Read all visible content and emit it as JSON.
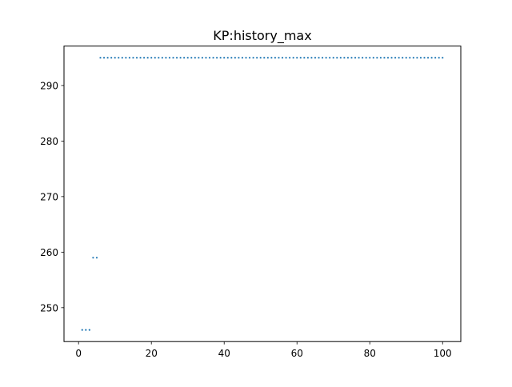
{
  "chart_data": {
    "type": "scatter",
    "title": "KP:history_max",
    "xlabel": "",
    "ylabel": "",
    "xlim": [
      -4,
      105
    ],
    "ylim": [
      243.9,
      297.1
    ],
    "x_ticks": [
      0,
      20,
      40,
      60,
      80,
      100
    ],
    "y_ticks": [
      250,
      260,
      270,
      280,
      290
    ],
    "x_tick_labels": [
      "0",
      "20",
      "40",
      "60",
      "80",
      "100"
    ],
    "y_tick_labels": [
      "250",
      "260",
      "270",
      "280",
      "290"
    ],
    "grid": false,
    "legend": "none",
    "series": [
      {
        "color": "#1f77b4",
        "points": [
          [
            1,
            246
          ],
          [
            2,
            246
          ],
          [
            3,
            246
          ],
          [
            4,
            259
          ],
          [
            5,
            259
          ],
          [
            6,
            295
          ],
          [
            7,
            295
          ],
          [
            8,
            295
          ],
          [
            9,
            295
          ],
          [
            10,
            295
          ],
          [
            11,
            295
          ],
          [
            12,
            295
          ],
          [
            13,
            295
          ],
          [
            14,
            295
          ],
          [
            15,
            295
          ],
          [
            16,
            295
          ],
          [
            17,
            295
          ],
          [
            18,
            295
          ],
          [
            19,
            295
          ],
          [
            20,
            295
          ],
          [
            21,
            295
          ],
          [
            22,
            295
          ],
          [
            23,
            295
          ],
          [
            24,
            295
          ],
          [
            25,
            295
          ],
          [
            26,
            295
          ],
          [
            27,
            295
          ],
          [
            28,
            295
          ],
          [
            29,
            295
          ],
          [
            30,
            295
          ],
          [
            31,
            295
          ],
          [
            32,
            295
          ],
          [
            33,
            295
          ],
          [
            34,
            295
          ],
          [
            35,
            295
          ],
          [
            36,
            295
          ],
          [
            37,
            295
          ],
          [
            38,
            295
          ],
          [
            39,
            295
          ],
          [
            40,
            295
          ],
          [
            41,
            295
          ],
          [
            42,
            295
          ],
          [
            43,
            295
          ],
          [
            44,
            295
          ],
          [
            45,
            295
          ],
          [
            46,
            295
          ],
          [
            47,
            295
          ],
          [
            48,
            295
          ],
          [
            49,
            295
          ],
          [
            50,
            295
          ],
          [
            51,
            295
          ],
          [
            52,
            295
          ],
          [
            53,
            295
          ],
          [
            54,
            295
          ],
          [
            55,
            295
          ],
          [
            56,
            295
          ],
          [
            57,
            295
          ],
          [
            58,
            295
          ],
          [
            59,
            295
          ],
          [
            60,
            295
          ],
          [
            61,
            295
          ],
          [
            62,
            295
          ],
          [
            63,
            295
          ],
          [
            64,
            295
          ],
          [
            65,
            295
          ],
          [
            66,
            295
          ],
          [
            67,
            295
          ],
          [
            68,
            295
          ],
          [
            69,
            295
          ],
          [
            70,
            295
          ],
          [
            71,
            295
          ],
          [
            72,
            295
          ],
          [
            73,
            295
          ],
          [
            74,
            295
          ],
          [
            75,
            295
          ],
          [
            76,
            295
          ],
          [
            77,
            295
          ],
          [
            78,
            295
          ],
          [
            79,
            295
          ],
          [
            80,
            295
          ],
          [
            81,
            295
          ],
          [
            82,
            295
          ],
          [
            83,
            295
          ],
          [
            84,
            295
          ],
          [
            85,
            295
          ],
          [
            86,
            295
          ],
          [
            87,
            295
          ],
          [
            88,
            295
          ],
          [
            89,
            295
          ],
          [
            90,
            295
          ],
          [
            91,
            295
          ],
          [
            92,
            295
          ],
          [
            93,
            295
          ],
          [
            94,
            295
          ],
          [
            95,
            295
          ],
          [
            96,
            295
          ],
          [
            97,
            295
          ],
          [
            98,
            295
          ],
          [
            99,
            295
          ],
          [
            100,
            295
          ]
        ]
      }
    ]
  }
}
